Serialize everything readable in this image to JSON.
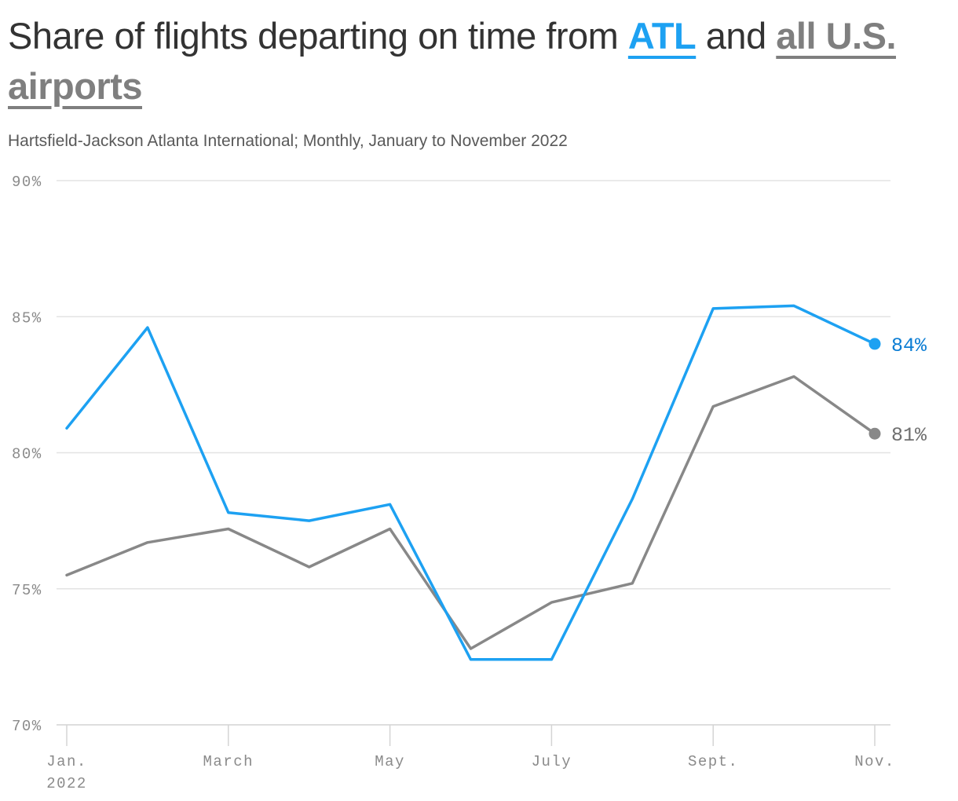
{
  "header": {
    "title_pre": "Share of flights departing on time from ",
    "title_atl": "ATL",
    "title_mid": " and ",
    "title_us": "all U.S. airports",
    "subtitle": "Hartsfield-Jackson Atlanta International; Monthly, January to November 2022"
  },
  "chart_data": {
    "type": "line",
    "x": [
      "Jan.",
      "Feb.",
      "March",
      "April",
      "May",
      "June",
      "July",
      "Aug.",
      "Sept.",
      "Oct.",
      "Nov."
    ],
    "x_tick_labels": [
      {
        "index": 0,
        "label": "Jan.",
        "label2": "2022"
      },
      {
        "index": 2,
        "label": "March",
        "label2": ""
      },
      {
        "index": 4,
        "label": "May",
        "label2": ""
      },
      {
        "index": 6,
        "label": "July",
        "label2": ""
      },
      {
        "index": 8,
        "label": "Sept.",
        "label2": ""
      },
      {
        "index": 10,
        "label": "Nov.",
        "label2": ""
      }
    ],
    "series": [
      {
        "name": "ATL",
        "color": "#1da1f2",
        "label_color": "#0b7dd4",
        "end_label": "84%",
        "values": [
          80.9,
          84.6,
          77.8,
          77.5,
          78.1,
          72.4,
          72.4,
          78.3,
          85.3,
          85.4,
          84.0
        ]
      },
      {
        "name": "all U.S. airports",
        "color": "#888888",
        "label_color": "#6f6f6f",
        "end_label": "81%",
        "values": [
          75.5,
          76.7,
          77.2,
          75.8,
          77.2,
          72.8,
          74.5,
          75.2,
          81.7,
          82.8,
          80.7
        ]
      }
    ],
    "y_ticks": [
      70,
      75,
      80,
      85,
      90
    ],
    "y_tick_labels": [
      "70%",
      "75%",
      "80%",
      "85%",
      "90%"
    ],
    "ylim": [
      70,
      90
    ],
    "grid": true,
    "title": "Share of flights departing on time from ATL and all U.S. airports",
    "subtitle": "Hartsfield-Jackson Atlanta International; Monthly, January to November 2022"
  }
}
